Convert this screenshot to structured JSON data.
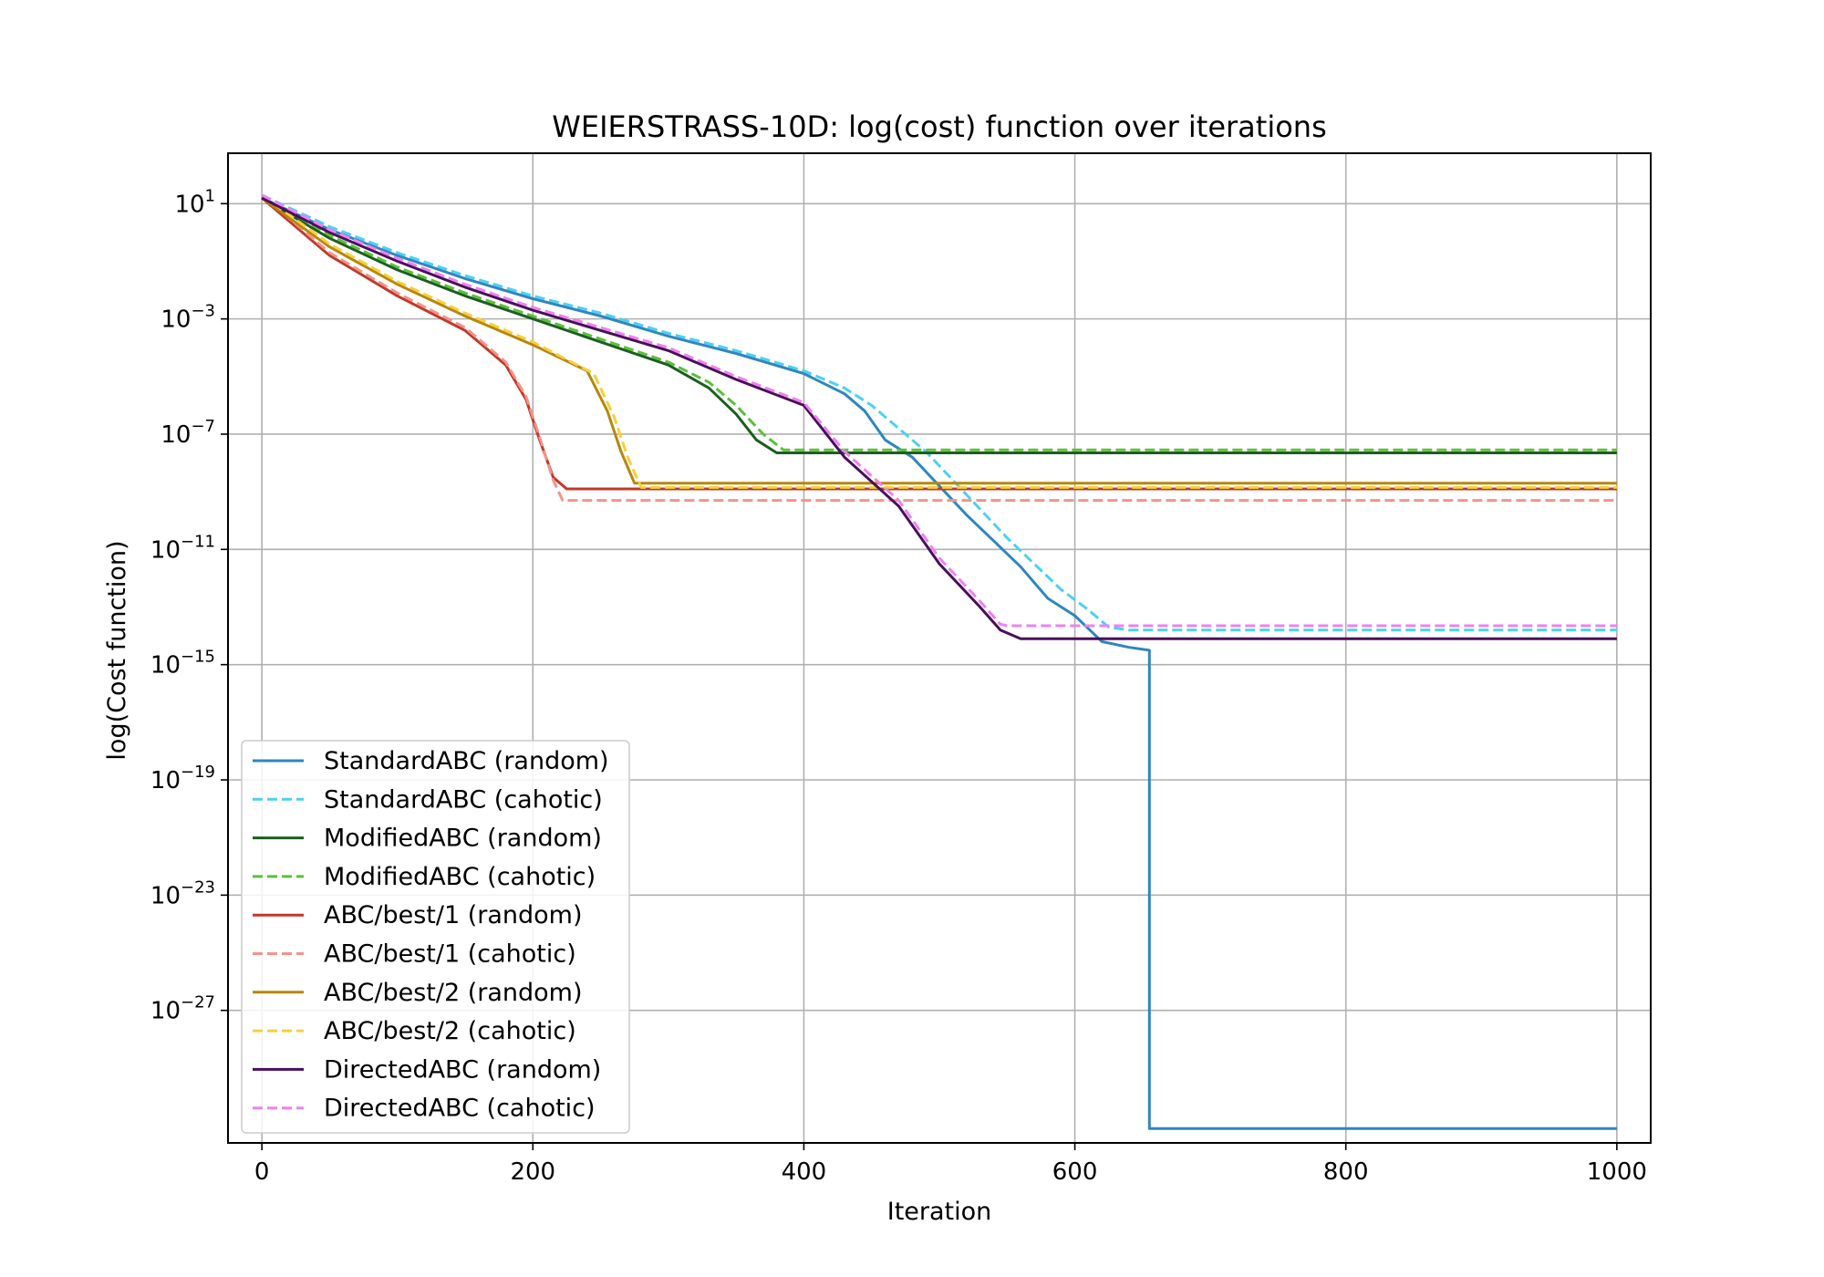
{
  "chart_data": {
    "type": "line",
    "title": "WEIERSTRASS-10D: log(cost) function over iterations",
    "xlabel": "Iteration",
    "ylabel": "log(Cost function)",
    "xlim": [
      -25,
      1025
    ],
    "ylim_log10": [
      -31.6,
      2.75
    ],
    "y_scale": "log",
    "x_ticks": [
      "0",
      "200",
      "400",
      "600",
      "800",
      "1000"
    ],
    "x_tick_values": [
      0,
      200,
      400,
      600,
      800,
      1000
    ],
    "y_tick_base": "10",
    "y_tick_exponents": [
      "1",
      "−3",
      "−7",
      "−11",
      "−15",
      "−19",
      "−23",
      "−27"
    ],
    "y_tick_values_log10": [
      1,
      -3,
      -7,
      -11,
      -15,
      -19,
      -23,
      -27
    ],
    "grid": true,
    "legend_position": "lower-left",
    "series": [
      {
        "name": "StandardABC (random)",
        "color": "#2e86c1",
        "dash": "solid",
        "points": [
          [
            0,
            1.2
          ],
          [
            50,
            0.1
          ],
          [
            100,
            -0.8
          ],
          [
            150,
            -1.6
          ],
          [
            200,
            -2.3
          ],
          [
            250,
            -2.9
          ],
          [
            300,
            -3.6
          ],
          [
            350,
            -4.2
          ],
          [
            400,
            -4.9
          ],
          [
            430,
            -5.6
          ],
          [
            445,
            -6.2
          ],
          [
            460,
            -7.2
          ],
          [
            480,
            -7.8
          ],
          [
            500,
            -8.8
          ],
          [
            520,
            -9.8
          ],
          [
            540,
            -10.7
          ],
          [
            560,
            -11.6
          ],
          [
            580,
            -12.7
          ],
          [
            600,
            -13.3
          ],
          [
            620,
            -14.2
          ],
          [
            640,
            -14.4
          ],
          [
            655,
            -14.5
          ],
          [
            655,
            -31.1
          ],
          [
            1000,
            -31.1
          ]
        ]
      },
      {
        "name": "StandardABC (cahotic)",
        "color": "#4dd0f0",
        "dash": "dashed",
        "points": [
          [
            0,
            1.3
          ],
          [
            50,
            0.2
          ],
          [
            100,
            -0.7
          ],
          [
            150,
            -1.5
          ],
          [
            200,
            -2.2
          ],
          [
            250,
            -2.8
          ],
          [
            300,
            -3.5
          ],
          [
            350,
            -4.1
          ],
          [
            400,
            -4.8
          ],
          [
            430,
            -5.4
          ],
          [
            450,
            -6.0
          ],
          [
            470,
            -6.8
          ],
          [
            490,
            -7.6
          ],
          [
            510,
            -8.6
          ],
          [
            530,
            -9.6
          ],
          [
            550,
            -10.6
          ],
          [
            570,
            -11.5
          ],
          [
            590,
            -12.4
          ],
          [
            610,
            -13.1
          ],
          [
            625,
            -13.7
          ],
          [
            640,
            -13.8
          ],
          [
            650,
            -13.8
          ],
          [
            1000,
            -13.8
          ]
        ]
      },
      {
        "name": "ModifiedABC (random)",
        "color": "#1b5e20",
        "dash": "solid",
        "points": [
          [
            0,
            1.2
          ],
          [
            50,
            -0.2
          ],
          [
            100,
            -1.3
          ],
          [
            150,
            -2.2
          ],
          [
            200,
            -3.0
          ],
          [
            250,
            -3.8
          ],
          [
            300,
            -4.6
          ],
          [
            330,
            -5.4
          ],
          [
            350,
            -6.3
          ],
          [
            365,
            -7.2
          ],
          [
            380,
            -7.65
          ],
          [
            1000,
            -7.65
          ]
        ]
      },
      {
        "name": "ModifiedABC (cahotic)",
        "color": "#5cbf3a",
        "dash": "dashed",
        "points": [
          [
            0,
            1.3
          ],
          [
            50,
            -0.1
          ],
          [
            100,
            -1.2
          ],
          [
            150,
            -2.1
          ],
          [
            200,
            -2.9
          ],
          [
            250,
            -3.7
          ],
          [
            300,
            -4.5
          ],
          [
            330,
            -5.2
          ],
          [
            350,
            -6.0
          ],
          [
            370,
            -7.0
          ],
          [
            385,
            -7.55
          ],
          [
            1000,
            -7.55
          ]
        ]
      },
      {
        "name": "ABC/best/1 (random)",
        "color": "#c0392b",
        "dash": "solid",
        "points": [
          [
            0,
            1.2
          ],
          [
            50,
            -0.8
          ],
          [
            100,
            -2.2
          ],
          [
            150,
            -3.4
          ],
          [
            180,
            -4.6
          ],
          [
            195,
            -5.8
          ],
          [
            205,
            -7.2
          ],
          [
            215,
            -8.5
          ],
          [
            225,
            -8.9
          ],
          [
            1000,
            -8.9
          ]
        ]
      },
      {
        "name": "ABC/best/1 (cahotic)",
        "color": "#f1948a",
        "dash": "dashed",
        "points": [
          [
            0,
            1.3
          ],
          [
            50,
            -0.7
          ],
          [
            100,
            -2.1
          ],
          [
            150,
            -3.3
          ],
          [
            180,
            -4.5
          ],
          [
            195,
            -5.7
          ],
          [
            205,
            -7.1
          ],
          [
            215,
            -8.6
          ],
          [
            222,
            -9.3
          ],
          [
            1000,
            -9.3
          ]
        ]
      },
      {
        "name": "ABC/best/2 (random)",
        "color": "#b8860b",
        "dash": "solid",
        "points": [
          [
            0,
            1.2
          ],
          [
            50,
            -0.5
          ],
          [
            100,
            -1.8
          ],
          [
            150,
            -2.9
          ],
          [
            200,
            -3.9
          ],
          [
            240,
            -4.8
          ],
          [
            255,
            -6.2
          ],
          [
            265,
            -7.6
          ],
          [
            275,
            -8.7
          ],
          [
            1000,
            -8.7
          ]
        ]
      },
      {
        "name": "ABC/best/2 (cahotic)",
        "color": "#f4d03f",
        "dash": "dashed",
        "points": [
          [
            0,
            1.3
          ],
          [
            50,
            -0.4
          ],
          [
            100,
            -1.7
          ],
          [
            150,
            -2.8
          ],
          [
            200,
            -3.8
          ],
          [
            245,
            -4.9
          ],
          [
            260,
            -6.4
          ],
          [
            270,
            -7.8
          ],
          [
            280,
            -8.85
          ],
          [
            1000,
            -8.85
          ]
        ]
      },
      {
        "name": "DirectedABC (random)",
        "color": "#4a0e5c",
        "dash": "solid",
        "points": [
          [
            0,
            1.2
          ],
          [
            50,
            0.0
          ],
          [
            100,
            -1.0
          ],
          [
            150,
            -1.9
          ],
          [
            200,
            -2.7
          ],
          [
            250,
            -3.4
          ],
          [
            300,
            -4.1
          ],
          [
            350,
            -5.1
          ],
          [
            400,
            -6.0
          ],
          [
            430,
            -7.8
          ],
          [
            470,
            -9.5
          ],
          [
            500,
            -11.5
          ],
          [
            530,
            -13.0
          ],
          [
            545,
            -13.8
          ],
          [
            560,
            -14.1
          ],
          [
            1000,
            -14.1
          ]
        ]
      },
      {
        "name": "DirectedABC (cahotic)",
        "color": "#ee82ee",
        "dash": "dashed",
        "points": [
          [
            0,
            1.3
          ],
          [
            50,
            0.1
          ],
          [
            100,
            -0.9
          ],
          [
            150,
            -1.8
          ],
          [
            200,
            -2.6
          ],
          [
            250,
            -3.3
          ],
          [
            300,
            -4.0
          ],
          [
            350,
            -5.0
          ],
          [
            400,
            -5.9
          ],
          [
            430,
            -7.6
          ],
          [
            470,
            -9.3
          ],
          [
            500,
            -11.3
          ],
          [
            530,
            -12.8
          ],
          [
            545,
            -13.6
          ],
          [
            550,
            -13.65
          ],
          [
            1000,
            -13.65
          ]
        ]
      }
    ]
  }
}
